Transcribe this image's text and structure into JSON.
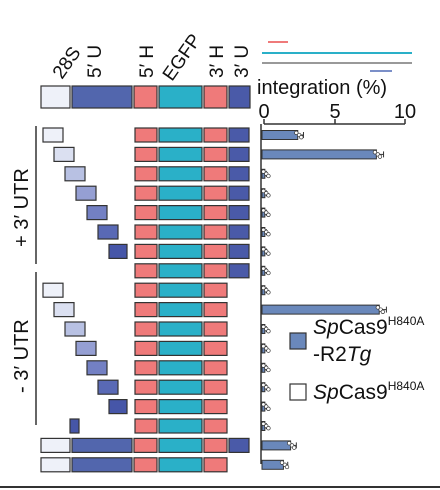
{
  "segments": [
    {
      "label": "28S",
      "color": "#eef1f9"
    },
    {
      "label": "5′ U",
      "color": "#5266ad"
    },
    {
      "label": "5′ H",
      "color": "#ef7a7a"
    },
    {
      "label": "EGFP",
      "color": "#2ab0c8"
    },
    {
      "label": "3′ H",
      "color": "#ef7a7a"
    },
    {
      "label": "3′ U",
      "color": "#4a5aa8"
    }
  ],
  "row_groups": [
    {
      "label": "+ 3′ UTR"
    },
    {
      "label": "- 3′ UTR"
    }
  ],
  "block_shades": [
    "#eef1f9",
    "#dbe0f1",
    "#b8c1e3",
    "#959fd3",
    "#7380c3",
    "#5969b5",
    "#4656a8"
  ],
  "axis": {
    "title": "integration (%)",
    "ticks": [
      "0",
      "5",
      "10"
    ],
    "min": 0,
    "max": 10
  },
  "bars": [
    {
      "value": 2.5,
      "error": 0.4
    },
    {
      "value": 8.0,
      "error": 0.5
    },
    {
      "value": 0.2,
      "error": 0.1
    },
    {
      "value": 0.2,
      "error": 0.1
    },
    {
      "value": 0.2,
      "error": 0.1
    },
    {
      "value": 0.2,
      "error": 0.1
    },
    {
      "value": 0.2,
      "error": 0.1
    },
    {
      "value": 0.2,
      "error": 0.1
    },
    {
      "value": 0.2,
      "error": 0.1
    },
    {
      "value": 8.2,
      "error": 0.5
    },
    {
      "value": 0.2,
      "error": 0.1
    },
    {
      "value": 0.2,
      "error": 0.1
    },
    {
      "value": 0.2,
      "error": 0.1
    },
    {
      "value": 0.2,
      "error": 0.1
    },
    {
      "value": 0.2,
      "error": 0.1
    },
    {
      "value": 0.2,
      "error": 0.1
    },
    {
      "value": 2.0,
      "error": 0.4
    },
    {
      "value": 1.5,
      "error": 0.3
    }
  ],
  "legend": [
    {
      "italic": "Sp",
      "text": "Cas9",
      "sup": "H840A",
      "line2_pre": "-R2",
      "line2_italic": "Tg",
      "color": "#6a88bb"
    },
    {
      "italic": "Sp",
      "text": "Cas9",
      "sup": "H840A",
      "color": "#ffffff"
    }
  ],
  "colors": {
    "pink": "#ef7a7a",
    "teal": "#2ab0c8",
    "blue": "#7b8fc8",
    "grey": "#999999"
  }
}
